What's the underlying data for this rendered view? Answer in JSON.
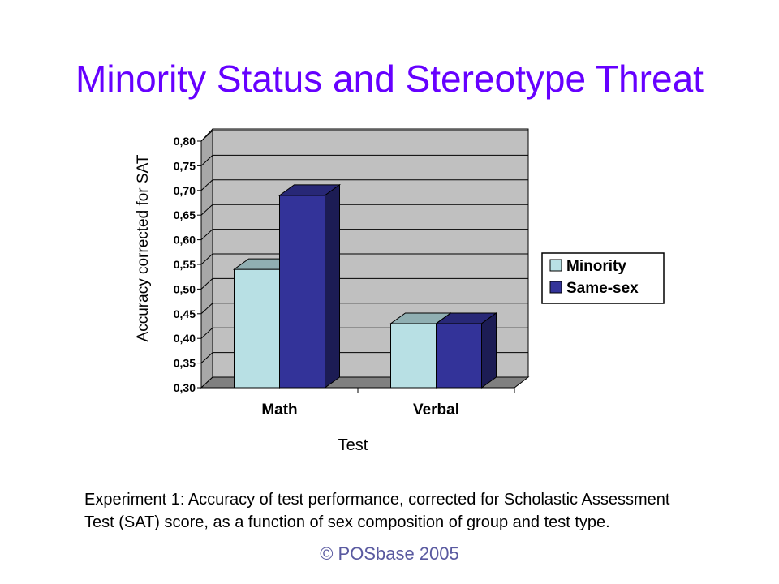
{
  "slide": {
    "title": "Minority Status and Stereotype Threat",
    "caption": "Experiment 1: Accuracy of test performance, corrected for Scholastic Assessment Test (SAT) score, as a function of sex composition of group and test type.",
    "copyright": "© POSbase 2005"
  },
  "chart_data": {
    "type": "bar",
    "xlabel": "Test",
    "ylabel": "Accuracy corrected for SAT",
    "categories": [
      "Math",
      "Verbal"
    ],
    "series": [
      {
        "name": "Minority",
        "values": [
          0.54,
          0.43
        ],
        "color": "#b8e0e4"
      },
      {
        "name": "Same-sex",
        "values": [
          0.69,
          0.43
        ],
        "color": "#333399"
      }
    ],
    "ylim": [
      0.3,
      0.8
    ],
    "yticks": [
      "0,80",
      "0,75",
      "0,70",
      "0,65",
      "0,60",
      "0,55",
      "0,50",
      "0,45",
      "0,40",
      "0,35",
      "0,30"
    ],
    "grid": true,
    "legend": "right",
    "three_d": true,
    "plot_background": "#c0c0c0"
  }
}
